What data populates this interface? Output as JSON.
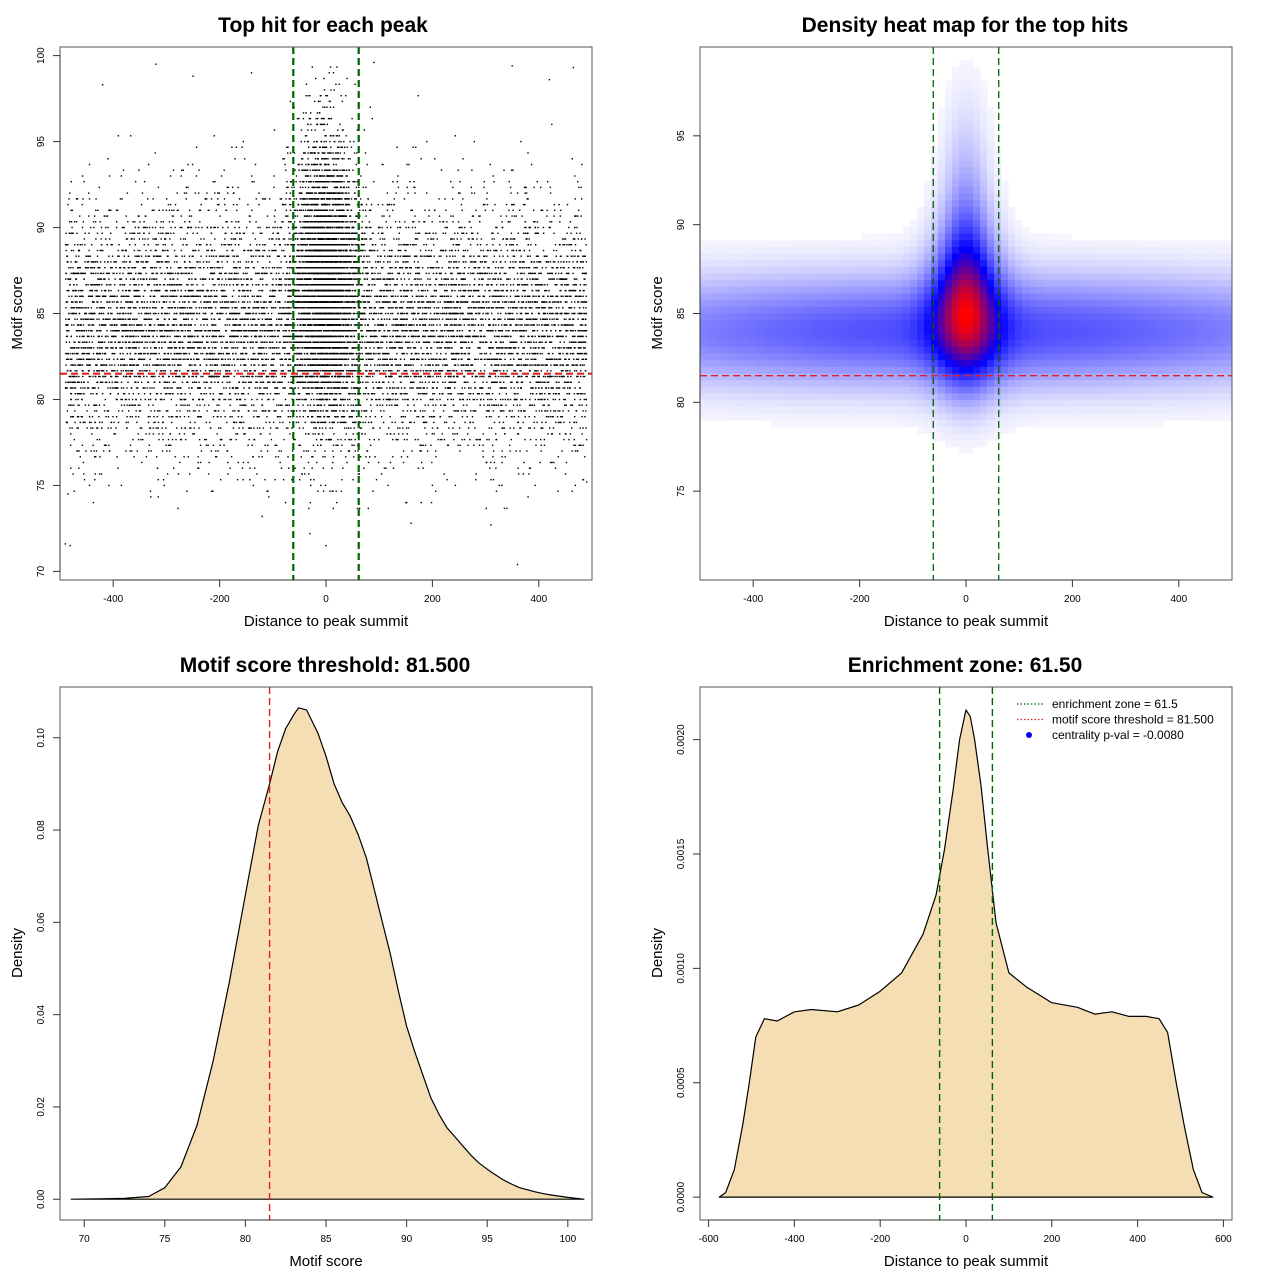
{
  "chart_data": [
    {
      "type": "scatter",
      "title": "Top hit for each peak",
      "xlabel": "Distance to peak summit",
      "ylabel": "Motif score",
      "xlim": [
        -500,
        500
      ],
      "ylim": [
        69.5,
        100.5
      ],
      "x_ticks": [
        "-400",
        "-200",
        "0",
        "200",
        "400"
      ],
      "x_tick_values": [
        -400,
        -200,
        0,
        200,
        400
      ],
      "y_ticks": [
        "70",
        "75",
        "80",
        "85",
        "90",
        "95",
        "100"
      ],
      "y_tick_values": [
        70,
        75,
        80,
        85,
        90,
        95,
        100
      ],
      "hlines": [
        {
          "y": 81.5,
          "color": "#e02020",
          "style": "dashed"
        }
      ],
      "vlines": [
        {
          "x": -61.5,
          "color": "#006400",
          "style": "dashed"
        },
        {
          "x": 61.5,
          "color": "#006400",
          "style": "dashed"
        }
      ],
      "point_color": "#000000",
      "distribution": {
        "n_points": 14000,
        "x_range": [
          -490,
          490
        ],
        "score_mean": 84.2,
        "score_sd": 3.6,
        "central_fraction": 0.3,
        "central_sd_x": 30,
        "central_score_mean": 87.0,
        "central_score_sd": 4.0
      },
      "outliers": [
        [
          -490,
          71.6
        ],
        [
          -481,
          71.5
        ],
        [
          -485,
          74.5
        ],
        [
          -120,
          73.2
        ],
        [
          -30,
          72.2
        ],
        [
          0,
          71.5
        ],
        [
          160,
          72.8
        ],
        [
          310,
          72.7
        ],
        [
          360,
          70.4
        ],
        [
          490,
          75.2
        ],
        [
          465,
          99.3
        ],
        [
          -320,
          99.5
        ],
        [
          -420,
          98.3
        ],
        [
          -250,
          98.8
        ],
        [
          90,
          99.6
        ],
        [
          350,
          99.4
        ],
        [
          420,
          98.6
        ],
        [
          -140,
          99.0
        ]
      ]
    },
    {
      "type": "heatmap",
      "title": "Density heat map for the top hits",
      "xlabel": "Distance to peak summit",
      "ylabel": "Motif score",
      "xlim": [
        -500,
        500
      ],
      "ylim": [
        70,
        100
      ],
      "x_ticks": [
        "-400",
        "-200",
        "0",
        "200",
        "400"
      ],
      "x_tick_values": [
        -400,
        -200,
        0,
        200,
        400
      ],
      "y_ticks": [
        "75",
        "80",
        "85",
        "90",
        "95"
      ],
      "y_tick_values": [
        75,
        80,
        85,
        90,
        95
      ],
      "hlines": [
        {
          "y": 81.5,
          "color": "#e02020",
          "style": "dashed"
        }
      ],
      "vlines": [
        {
          "x": -61.5,
          "color": "#006400",
          "style": "dashed"
        },
        {
          "x": 61.5,
          "color": "#006400",
          "style": "dashed"
        }
      ],
      "color_scale": [
        "#ffffff",
        "#0000ff",
        "#ff0000"
      ],
      "density_components": [
        {
          "x": 0,
          "y": 84.0,
          "sx": 600,
          "sy": 2.2,
          "w": 0.55
        },
        {
          "x": 0,
          "y": 85.5,
          "sx": 45,
          "sy": 3.0,
          "w": 0.75
        },
        {
          "x": 0,
          "y": 89.5,
          "sx": 30,
          "sy": 4.5,
          "w": 0.3
        }
      ]
    },
    {
      "type": "area",
      "title": "Motif score threshold: 81.500",
      "xlabel": "Motif score",
      "ylabel": "Density",
      "xlim": [
        68.5,
        101.5
      ],
      "ylim": [
        -0.0045,
        0.111
      ],
      "x_ticks": [
        "70",
        "75",
        "80",
        "85",
        "90",
        "95",
        "100"
      ],
      "x_tick_values": [
        70,
        75,
        80,
        85,
        90,
        95,
        100
      ],
      "y_ticks": [
        "0.00",
        "0.02",
        "0.04",
        "0.06",
        "0.08",
        "0.10"
      ],
      "y_tick_values": [
        0,
        0.02,
        0.04,
        0.06,
        0.08,
        0.1
      ],
      "fill_color": "#f5deb3",
      "vlines": [
        {
          "x": 81.5,
          "color": "#e02020",
          "style": "dashed"
        }
      ],
      "x": [
        69.2,
        71,
        72.5,
        74,
        75,
        76,
        77,
        78,
        79,
        80,
        80.8,
        81.5,
        82,
        82.5,
        83,
        83.3,
        83.8,
        84.5,
        85,
        85.5,
        86,
        86.5,
        87,
        87.5,
        88,
        88.5,
        89,
        89.5,
        90,
        90.5,
        91,
        91.5,
        92,
        92.5,
        93,
        93.5,
        94,
        94.5,
        95,
        95.5,
        96,
        96.5,
        97,
        98,
        98.5,
        99,
        100,
        101
      ],
      "y": [
        0.0,
        0.0001,
        0.0002,
        0.0006,
        0.0025,
        0.007,
        0.016,
        0.03,
        0.047,
        0.066,
        0.081,
        0.09,
        0.097,
        0.102,
        0.105,
        0.1065,
        0.106,
        0.101,
        0.096,
        0.09,
        0.086,
        0.083,
        0.079,
        0.074,
        0.067,
        0.06,
        0.053,
        0.045,
        0.0375,
        0.032,
        0.027,
        0.022,
        0.0185,
        0.0155,
        0.0135,
        0.0115,
        0.0095,
        0.0078,
        0.0065,
        0.0053,
        0.0042,
        0.0033,
        0.0025,
        0.0016,
        0.0012,
        0.0009,
        0.0004,
        0.0
      ]
    },
    {
      "type": "area",
      "title": "Enrichment zone: 61.50",
      "xlabel": "Distance to peak summit",
      "ylabel": "Density",
      "xlim": [
        -620,
        620
      ],
      "ylim": [
        -0.0001,
        0.00223
      ],
      "x_ticks": [
        "-600",
        "-400",
        "-200",
        "0",
        "200",
        "400",
        "600"
      ],
      "x_tick_values": [
        -600,
        -400,
        -200,
        0,
        200,
        400,
        600
      ],
      "y_ticks": [
        "0.0000",
        "0.0005",
        "0.0010",
        "0.0015",
        "0.0020"
      ],
      "y_tick_values": [
        0,
        0.0005,
        0.001,
        0.0015,
        0.002
      ],
      "fill_color": "#f5deb3",
      "vlines": [
        {
          "x": -61.5,
          "color": "#006400",
          "style": "dashed"
        },
        {
          "x": 61.5,
          "color": "#006400",
          "style": "dashed"
        }
      ],
      "legend": [
        {
          "label": "enrichment zone = 61.5",
          "color": "#006400",
          "kind": "dotted-line"
        },
        {
          "label": "motif score threshold = 81.500",
          "color": "#e02020",
          "kind": "dotted-line"
        },
        {
          "label": "centrality p-val = -0.0080",
          "color": "#0000ff",
          "kind": "point"
        }
      ],
      "x": [
        -575,
        -560,
        -540,
        -520,
        -505,
        -490,
        -470,
        -440,
        -400,
        -360,
        -300,
        -250,
        -200,
        -150,
        -100,
        -70,
        -50,
        -30,
        -15,
        0,
        10,
        20,
        35,
        50,
        70,
        100,
        140,
        200,
        260,
        300,
        340,
        380,
        420,
        450,
        470,
        490,
        510,
        530,
        550,
        575
      ],
      "y": [
        0.0,
        2e-05,
        0.00012,
        0.00032,
        0.0005,
        0.0007,
        0.00078,
        0.00077,
        0.00081,
        0.00082,
        0.00081,
        0.00084,
        0.0009,
        0.00098,
        0.00115,
        0.00132,
        0.00152,
        0.00178,
        0.002,
        0.00213,
        0.0021,
        0.002,
        0.0018,
        0.00153,
        0.0012,
        0.00098,
        0.00092,
        0.00085,
        0.00083,
        0.0008,
        0.00081,
        0.00079,
        0.00079,
        0.00078,
        0.00072,
        0.0005,
        0.0003,
        0.00012,
        2e-05,
        0.0
      ]
    }
  ]
}
